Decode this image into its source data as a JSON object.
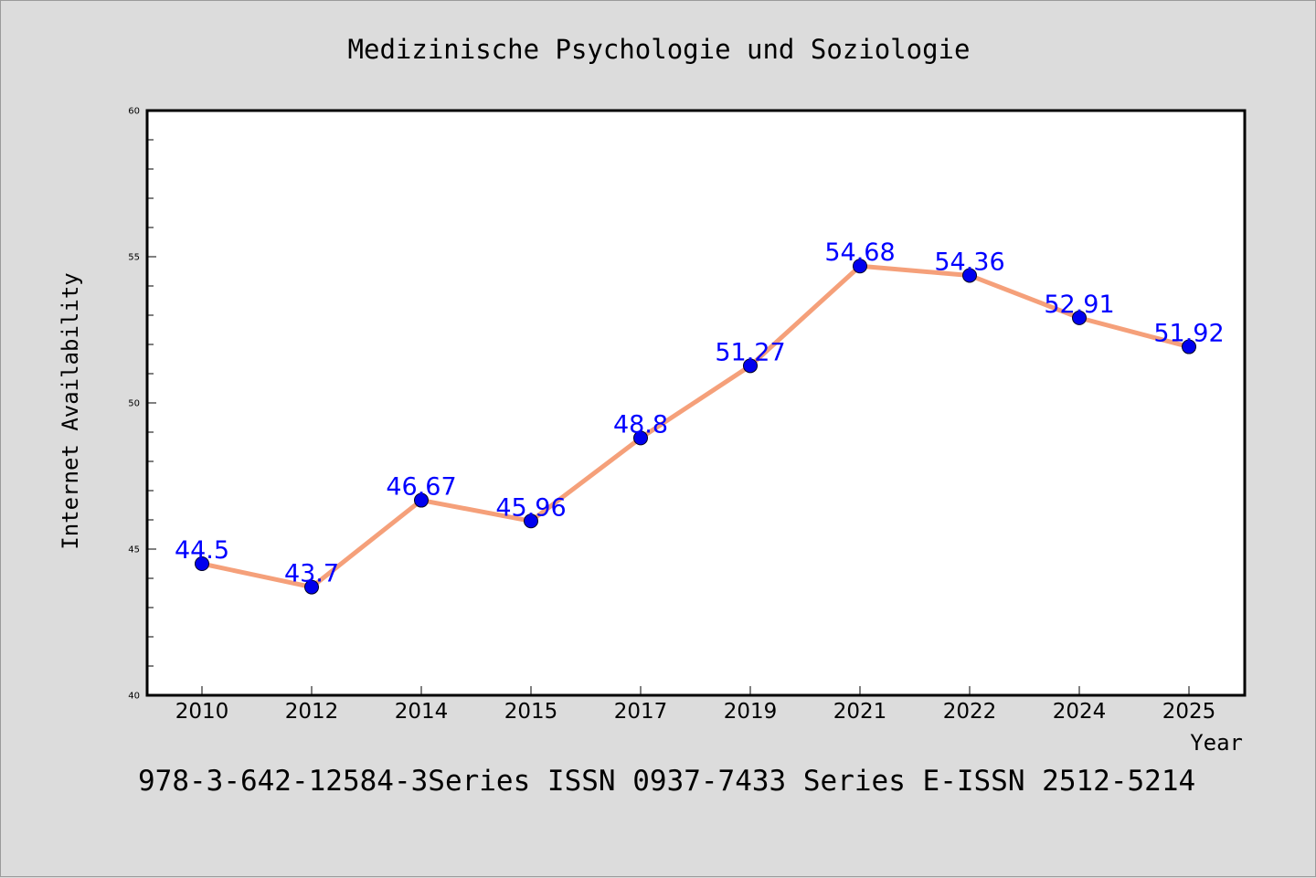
{
  "chart_data": {
    "type": "line",
    "title": "Medizinische Psychologie und Soziologie",
    "xlabel": "Year",
    "ylabel": "Internet Availability",
    "categories": [
      "2010",
      "2012",
      "2014",
      "2015",
      "2017",
      "2019",
      "2021",
      "2022",
      "2024",
      "2025"
    ],
    "values": [
      44.5,
      43.7,
      46.67,
      45.96,
      48.8,
      51.27,
      54.68,
      54.36,
      52.91,
      51.92
    ],
    "data_labels": [
      "44.5",
      "43.7",
      "46.67",
      "45.96",
      "48.8",
      "51.27",
      "54.68",
      "54.36",
      "52.91",
      "51.92"
    ],
    "ylim": [
      40,
      60
    ],
    "yticks": [
      40,
      45,
      50,
      55,
      60
    ],
    "grid": false,
    "legend": "none",
    "colors": {
      "line": "#f5a07a",
      "marker": "#0000ee",
      "data_label": "#0000ff",
      "plot_background": "#ffffff",
      "page_background": "#dcdcdc"
    }
  },
  "footer": {
    "text": "978-3-642-12584-3Series ISSN 0937-7433 Series E-ISSN 2512-5214"
  }
}
